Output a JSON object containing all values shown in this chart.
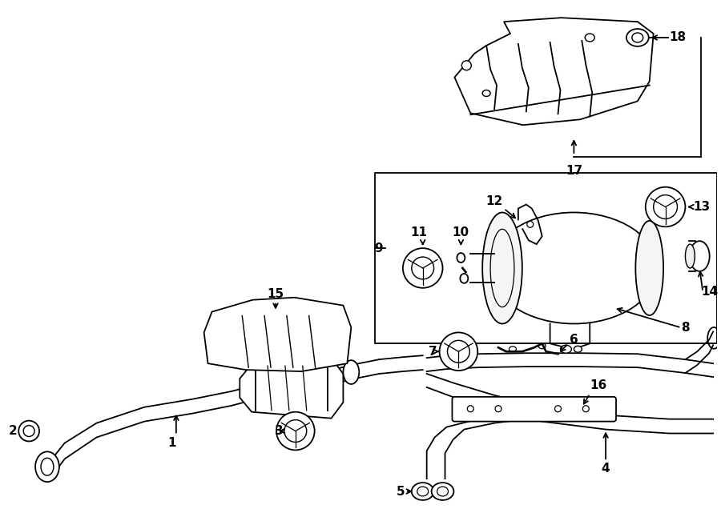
{
  "bg_color": "#ffffff",
  "line_color": "#000000",
  "fig_width": 9.0,
  "fig_height": 6.61,
  "dpi": 100,
  "lw": 1.3,
  "fontsize": 11
}
